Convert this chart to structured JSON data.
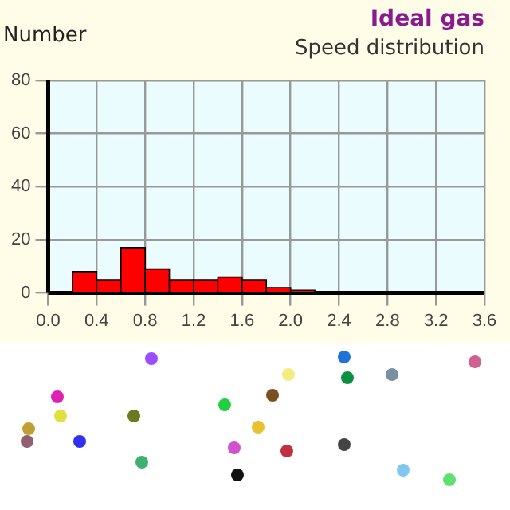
{
  "chart_data": {
    "type": "histogram",
    "title": "Ideal gas",
    "subtitle": "Speed distribution",
    "ylabel": "Number",
    "bins": [
      0.2,
      0.4,
      0.6,
      0.8,
      1.0,
      1.2,
      1.4,
      1.6,
      1.8,
      2.0,
      2.2
    ],
    "values": [
      8,
      5,
      17,
      9,
      5,
      5,
      6,
      5,
      2,
      1
    ],
    "color": "#ff0000",
    "xlim": [
      0,
      3.6
    ],
    "xticks": [
      {
        "value": 0,
        "label": "0.0"
      },
      0.4,
      0.8,
      1.2,
      1.6,
      {
        "value": 2,
        "label": "2.0"
      },
      2.4,
      2.8,
      3.2,
      3.6
    ],
    "ylim": [
      0,
      80
    ],
    "yticks": [
      0,
      20,
      40,
      60,
      80
    ],
    "grid": true,
    "legend": false
  }
}
